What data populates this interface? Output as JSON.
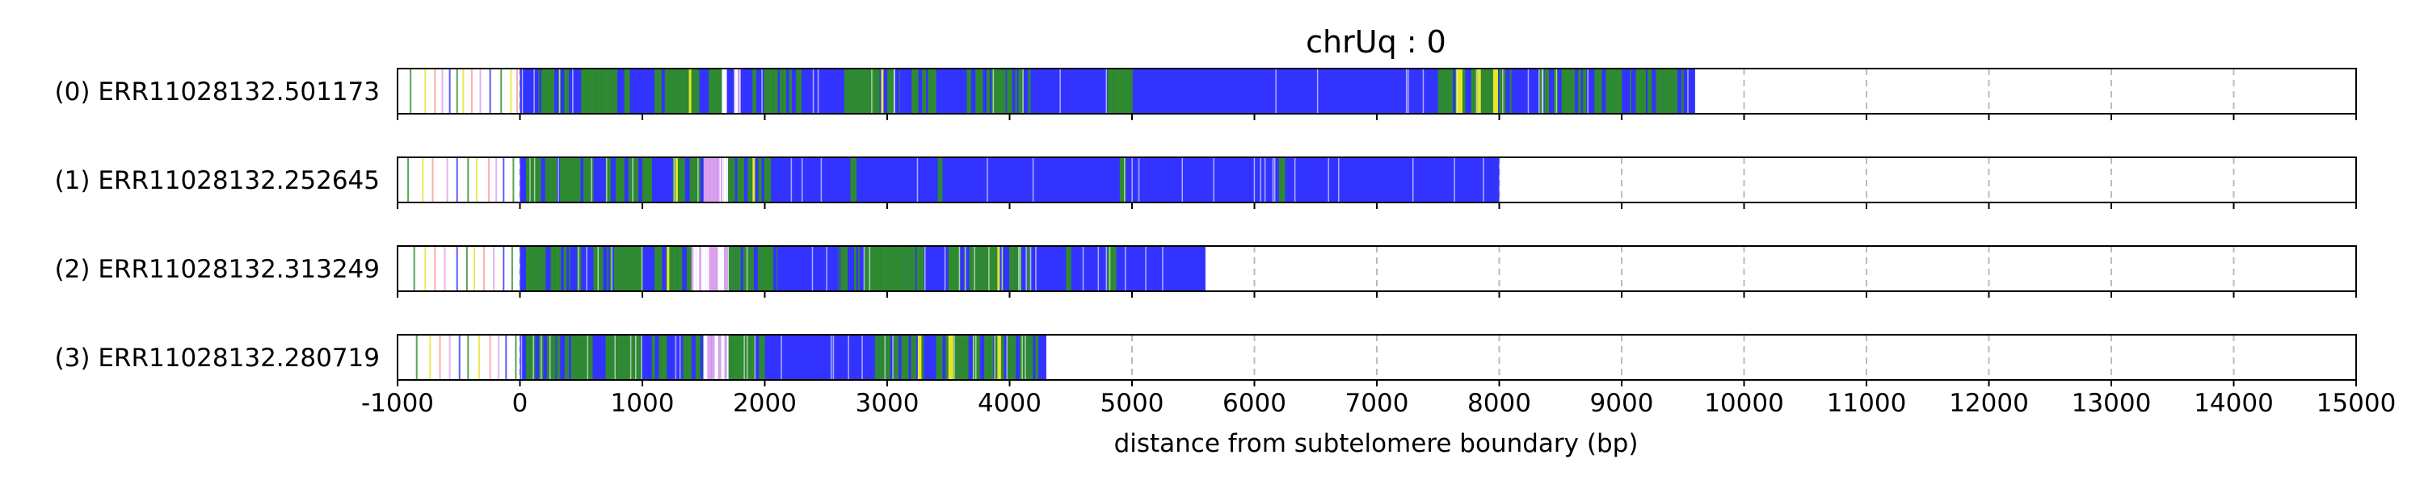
{
  "chart_data": {
    "type": "bar",
    "title": "chrUq : 0",
    "xlabel": "distance from subtelomere boundary (bp)",
    "ylabel": "",
    "xlim": [
      -1000,
      15000
    ],
    "x_ticks": [
      -1000,
      0,
      1000,
      2000,
      3000,
      4000,
      5000,
      6000,
      7000,
      8000,
      9000,
      10000,
      11000,
      12000,
      13000,
      14000,
      15000
    ],
    "grid": "vertical dashed at x ticks",
    "segment_colors": {
      "repeat": "#3333ff",
      "variant": "#2e8b2e",
      "mismatch": "#e5e52e",
      "insertion": "#dda0ee",
      "other": "#ff9999"
    },
    "series": [
      {
        "label": "(0) ERR11028132.501173",
        "start": -1000,
        "end": 9600,
        "dense_start": 0,
        "sparse_ticks": [
          -900,
          -780,
          -700,
          -640,
          -580,
          -520,
          -470,
          -400,
          -330,
          -250,
          -160,
          -80,
          -30
        ],
        "green_bands": [
          [
            150,
            400
          ],
          [
            500,
            900
          ],
          [
            1100,
            1700
          ],
          [
            1900,
            2300
          ],
          [
            2650,
            3100
          ],
          [
            3200,
            3400
          ],
          [
            3650,
            4200
          ],
          [
            4800,
            5000
          ],
          [
            7500,
            8100
          ],
          [
            8300,
            9500
          ]
        ],
        "yellow_bands": [
          [
            7650,
            7700
          ],
          [
            7820,
            7850
          ],
          [
            7950,
            7990
          ],
          [
            1380,
            1400
          ],
          [
            2950,
            2970
          ]
        ],
        "pink_bands": [
          [
            1650,
            1690
          ],
          [
            1750,
            1800
          ]
        ]
      },
      {
        "label": "(1) ERR11028132.252645",
        "start": -1000,
        "end": 8000,
        "dense_start": 0,
        "sparse_ticks": [
          -920,
          -800,
          -720,
          -600,
          -520,
          -430,
          -360,
          -260,
          -200,
          -140,
          -60
        ],
        "green_bands": [
          [
            50,
            600
          ],
          [
            700,
            1100
          ],
          [
            1250,
            1500
          ],
          [
            1700,
            2050
          ],
          [
            2700,
            2750
          ],
          [
            3400,
            3450
          ],
          [
            4900,
            4950
          ],
          [
            6200,
            6250
          ]
        ],
        "yellow_bands": [
          [
            1270,
            1290
          ],
          [
            1900,
            1920
          ]
        ],
        "pink_bands": [
          [
            1500,
            1700
          ]
        ]
      },
      {
        "label": "(2) ERR11028132.313249",
        "start": -1000,
        "end": 5600,
        "dense_start": 0,
        "sparse_ticks": [
          -870,
          -780,
          -700,
          -620,
          -520,
          -440,
          -380,
          -300,
          -220,
          -140,
          -70
        ],
        "green_bands": [
          [
            50,
            500
          ],
          [
            600,
            1000
          ],
          [
            1100,
            1400
          ],
          [
            1700,
            2100
          ],
          [
            2600,
            3300
          ],
          [
            3500,
            4200
          ],
          [
            4400,
            4500
          ],
          [
            4800,
            4900
          ]
        ],
        "yellow_bands": [
          [
            1200,
            1220
          ],
          [
            3900,
            3920
          ]
        ],
        "pink_bands": [
          [
            1400,
            1700
          ]
        ]
      },
      {
        "label": "(3) ERR11028132.280719",
        "start": -1000,
        "end": 4300,
        "dense_start": 0,
        "sparse_ticks": [
          -850,
          -740,
          -660,
          -580,
          -500,
          -430,
          -340,
          -250,
          -180,
          -120,
          -40
        ],
        "green_bands": [
          [
            50,
            600
          ],
          [
            700,
            1200
          ],
          [
            1300,
            1500
          ],
          [
            1700,
            2000
          ],
          [
            2900,
            3300
          ],
          [
            3400,
            4250
          ]
        ],
        "yellow_bands": [
          [
            3250,
            3280
          ],
          [
            3500,
            3540
          ],
          [
            3900,
            3930
          ]
        ],
        "pink_bands": [
          [
            1500,
            1700
          ]
        ]
      }
    ]
  }
}
